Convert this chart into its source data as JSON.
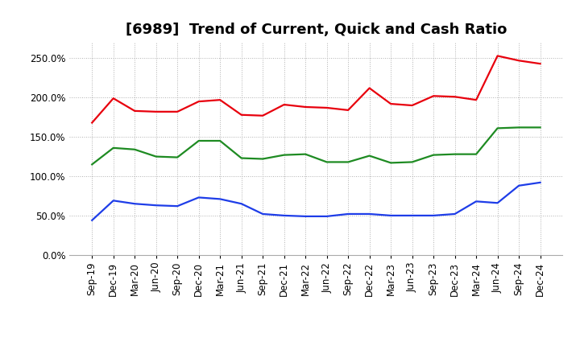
{
  "title": "[6989]  Trend of Current, Quick and Cash Ratio",
  "x_labels": [
    "Sep-19",
    "Dec-19",
    "Mar-20",
    "Jun-20",
    "Sep-20",
    "Dec-20",
    "Mar-21",
    "Jun-21",
    "Sep-21",
    "Dec-21",
    "Mar-22",
    "Jun-22",
    "Sep-22",
    "Dec-22",
    "Mar-23",
    "Jun-23",
    "Sep-23",
    "Dec-23",
    "Mar-24",
    "Jun-24",
    "Sep-24",
    "Dec-24"
  ],
  "current_ratio": [
    168,
    199,
    183,
    182,
    182,
    195,
    197,
    178,
    177,
    191,
    188,
    187,
    184,
    212,
    192,
    190,
    202,
    201,
    197,
    253,
    247,
    243
  ],
  "quick_ratio": [
    115,
    136,
    134,
    125,
    124,
    145,
    145,
    123,
    122,
    127,
    128,
    118,
    118,
    126,
    117,
    118,
    127,
    128,
    128,
    161,
    162,
    162
  ],
  "cash_ratio": [
    44,
    69,
    65,
    63,
    62,
    73,
    71,
    65,
    52,
    50,
    49,
    49,
    52,
    52,
    50,
    50,
    50,
    52,
    68,
    66,
    88,
    92
  ],
  "current_color": "#e8000d",
  "quick_color": "#1e8b22",
  "cash_color": "#1e3de8",
  "background_color": "#ffffff",
  "grid_color": "#b0b0b0",
  "ylim": [
    0,
    270
  ],
  "yticks": [
    0,
    50,
    100,
    150,
    200,
    250
  ],
  "title_fontsize": 13,
  "legend_fontsize": 10,
  "tick_fontsize": 8.5
}
